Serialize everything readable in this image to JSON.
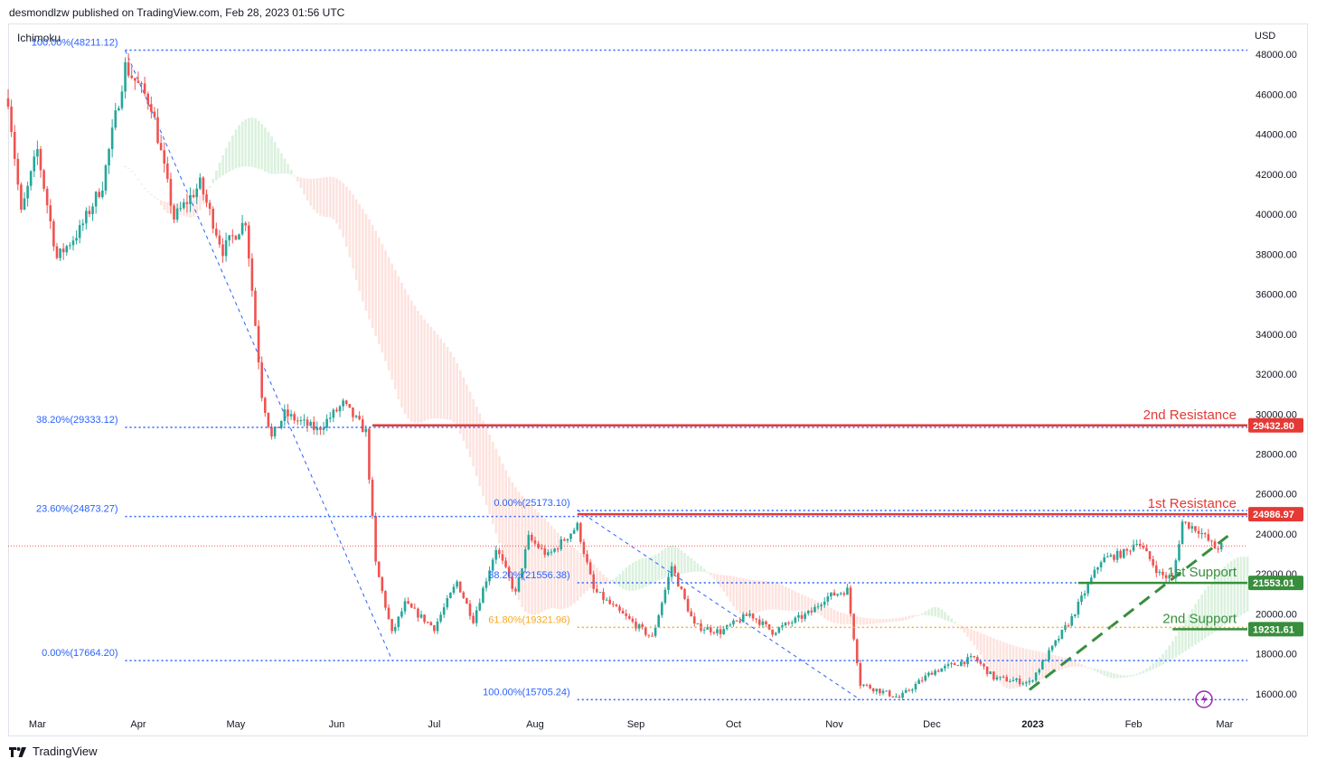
{
  "header": {
    "published_by": "desmondlzw published on TradingView.com, Feb 28, 2023 01:56 UTC",
    "indicator": "Ichimoku",
    "currency": "USD"
  },
  "footer": {
    "brand": "TradingView"
  },
  "colors": {
    "up": "#26a69a",
    "down": "#ef5350",
    "fib_blue": "#2962ff",
    "resistance": "#e53935",
    "support": "#388e3c",
    "fib_orange": "#f9a825",
    "cloud_green": "#d7f0da",
    "cloud_red": "#fde0dc"
  },
  "chart_data": {
    "type": "candlestick",
    "title": "",
    "y_axis": {
      "range": [
        15000,
        49500
      ],
      "ticks": [
        "16000.00",
        "18000.00",
        "20000.00",
        "22000.00",
        "24000.00",
        "26000.00",
        "28000.00",
        "30000.00",
        "32000.00",
        "34000.00",
        "36000.00",
        "38000.00",
        "40000.00",
        "42000.00",
        "44000.00",
        "46000.00",
        "48000.00"
      ],
      "tick_values": [
        16000,
        18000,
        20000,
        22000,
        24000,
        26000,
        28000,
        30000,
        32000,
        34000,
        36000,
        38000,
        40000,
        42000,
        44000,
        46000,
        48000
      ]
    },
    "x_axis": {
      "range": [
        "2022-02-20",
        "2023-03-08"
      ],
      "labels": [
        {
          "label": "Mar",
          "date": "2022-03-01"
        },
        {
          "label": "Apr",
          "date": "2022-04-01"
        },
        {
          "label": "May",
          "date": "2022-05-01"
        },
        {
          "label": "Jun",
          "date": "2022-06-01"
        },
        {
          "label": "Jul",
          "date": "2022-07-01"
        },
        {
          "label": "Aug",
          "date": "2022-08-01"
        },
        {
          "label": "Sep",
          "date": "2022-09-01"
        },
        {
          "label": "Oct",
          "date": "2022-10-01"
        },
        {
          "label": "Nov",
          "date": "2022-11-01"
        },
        {
          "label": "Dec",
          "date": "2022-12-01"
        },
        {
          "label": "2023",
          "date": "2023-01-01"
        },
        {
          "label": "Feb",
          "date": "2023-02-01"
        },
        {
          "label": "Mar",
          "date": "2023-03-01"
        }
      ]
    },
    "price_path": [
      [
        "2022-02-20",
        45800
      ],
      [
        "2022-02-24",
        40000
      ],
      [
        "2022-03-01",
        43200
      ],
      [
        "2022-03-07",
        37800
      ],
      [
        "2022-03-14",
        39200
      ],
      [
        "2022-03-21",
        41500
      ],
      [
        "2022-03-28",
        47400
      ],
      [
        "2022-04-05",
        45500
      ],
      [
        "2022-04-12",
        39800
      ],
      [
        "2022-04-20",
        41500
      ],
      [
        "2022-04-27",
        38200
      ],
      [
        "2022-05-04",
        39700
      ],
      [
        "2022-05-09",
        31000
      ],
      [
        "2022-05-12",
        28800
      ],
      [
        "2022-05-16",
        30000
      ],
      [
        "2022-05-26",
        29200
      ],
      [
        "2022-06-03",
        30500
      ],
      [
        "2022-06-10",
        29100
      ],
      [
        "2022-06-13",
        22500
      ],
      [
        "2022-06-18",
        19000
      ],
      [
        "2022-06-22",
        20500
      ],
      [
        "2022-07-01",
        19300
      ],
      [
        "2022-07-08",
        21600
      ],
      [
        "2022-07-13",
        19700
      ],
      [
        "2022-07-20",
        23300
      ],
      [
        "2022-07-26",
        21000
      ],
      [
        "2022-07-30",
        23800
      ],
      [
        "2022-08-05",
        22900
      ],
      [
        "2022-08-14",
        24400
      ],
      [
        "2022-08-19",
        21200
      ],
      [
        "2022-08-26",
        20200
      ],
      [
        "2022-09-06",
        18800
      ],
      [
        "2022-09-12",
        22400
      ],
      [
        "2022-09-19",
        19400
      ],
      [
        "2022-09-27",
        19100
      ],
      [
        "2022-10-06",
        20000
      ],
      [
        "2022-10-13",
        19100
      ],
      [
        "2022-10-25",
        20100
      ],
      [
        "2022-10-29",
        20800
      ],
      [
        "2022-11-05",
        21200
      ],
      [
        "2022-11-09",
        16500
      ],
      [
        "2022-11-21",
        15800
      ],
      [
        "2022-12-01",
        17100
      ],
      [
        "2022-12-14",
        17800
      ],
      [
        "2022-12-20",
        16800
      ],
      [
        "2022-12-31",
        16550
      ],
      [
        "2023-01-13",
        19800
      ],
      [
        "2023-01-22",
        22700
      ],
      [
        "2023-01-30",
        23100
      ],
      [
        "2023-02-02",
        23700
      ],
      [
        "2023-02-09",
        22000
      ],
      [
        "2023-02-13",
        21700
      ],
      [
        "2023-02-16",
        24600
      ],
      [
        "2023-02-21",
        24200
      ],
      [
        "2023-02-26",
        23300
      ],
      [
        "2023-02-28",
        23400
      ]
    ],
    "fib_sets": [
      {
        "name": "upper",
        "levels": [
          {
            "label": "100.00%(48211.12)",
            "value": 48211.12
          },
          {
            "label": "38.20%(29333.12)",
            "value": 29333.12
          },
          {
            "label": "23.60%(24873.27)",
            "value": 24873.27
          },
          {
            "label": "0.00%(17664.20)",
            "value": 17664.2
          }
        ]
      },
      {
        "name": "lower",
        "levels": [
          {
            "label": "0.00%(25173.10)",
            "value": 25173.1
          },
          {
            "label": "38.20%(21556.38)",
            "value": 21556.38
          },
          {
            "label": "61.80%(19321.96)",
            "value": 19321.96
          },
          {
            "label": "100.00%(15705.24)",
            "value": 15705.24
          }
        ]
      }
    ],
    "key_levels": [
      {
        "label": "2nd Resistance",
        "value": 29432.8,
        "price_label": "29432.80",
        "kind": "resistance"
      },
      {
        "label": "1st Resistance",
        "value": 24986.97,
        "price_label": "24986.97",
        "kind": "resistance"
      },
      {
        "label": "1st Support",
        "value": 21553.01,
        "price_label": "21553.01",
        "kind": "support"
      },
      {
        "label": "2nd Support",
        "value": 19231.61,
        "price_label": "19231.61",
        "kind": "support"
      }
    ],
    "current_price": 23400,
    "trendlines": [
      {
        "kind": "uptrend_support",
        "from": [
          "2022-12-31",
          16200
        ],
        "to": [
          "2023-03-02",
          23900
        ]
      },
      {
        "kind": "fib_leg",
        "from": [
          "2022-03-28",
          48200
        ],
        "to": [
          "2022-06-18",
          17700
        ]
      },
      {
        "kind": "fib_leg",
        "from": [
          "2022-08-14",
          25200
        ],
        "to": [
          "2022-11-09",
          15700
        ]
      }
    ]
  }
}
